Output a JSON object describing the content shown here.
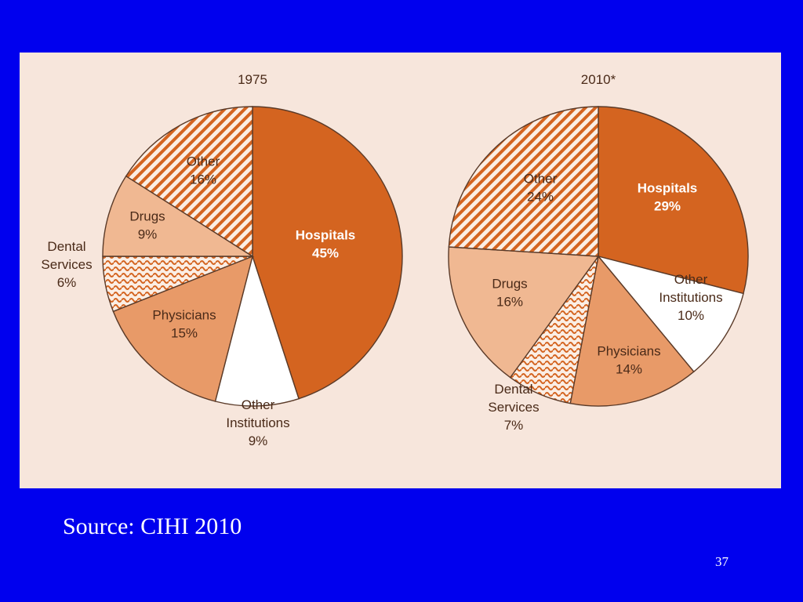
{
  "colors": {
    "background": "#0000ee",
    "panel": "#f7e6dc",
    "hospitals": "#d46420",
    "physicians": "#e89a68",
    "drugs": "#f0b892",
    "other_institutions": "#ffffff",
    "pattern_stroke": "#d46420",
    "pattern_bg": "#fbeee4",
    "text": "#4a2a18",
    "text_on_dark": "#ffffff"
  },
  "chart_data": [
    {
      "type": "pie",
      "title": "1975",
      "slices": [
        {
          "key": "hospitals",
          "label": [
            "Hospitals",
            "45%"
          ],
          "value": 45,
          "fill": "hospitals"
        },
        {
          "key": "other-institutions",
          "label": [
            "Other",
            "Institutions",
            "9%"
          ],
          "value": 9,
          "fill": "other_institutions"
        },
        {
          "key": "physicians",
          "label": [
            "Physicians",
            "15%"
          ],
          "value": 15,
          "fill": "physicians"
        },
        {
          "key": "dental-services",
          "label": [
            "Dental",
            "Services",
            "6%"
          ],
          "value": 6,
          "fill": "wave"
        },
        {
          "key": "drugs",
          "label": [
            "Drugs",
            "9%"
          ],
          "value": 9,
          "fill": "drugs"
        },
        {
          "key": "other",
          "label": [
            "Other",
            "16%"
          ],
          "value": 16,
          "fill": "hatch"
        }
      ]
    },
    {
      "type": "pie",
      "title": "2010*",
      "slices": [
        {
          "key": "hospitals",
          "label": [
            "Hospitals",
            "29%"
          ],
          "value": 29,
          "fill": "hospitals"
        },
        {
          "key": "other-institutions",
          "label": [
            "Other",
            "Institutions",
            "10%"
          ],
          "value": 10,
          "fill": "other_institutions"
        },
        {
          "key": "physicians",
          "label": [
            "Physicians",
            "14%"
          ],
          "value": 14,
          "fill": "physicians"
        },
        {
          "key": "dental-services",
          "label": [
            "Dental",
            "Services",
            "7%"
          ],
          "value": 7,
          "fill": "wave"
        },
        {
          "key": "drugs",
          "label": [
            "Drugs",
            "16%"
          ],
          "value": 16,
          "fill": "drugs"
        },
        {
          "key": "other",
          "label": [
            "Other",
            "24%"
          ],
          "value": 24,
          "fill": "hatch"
        }
      ]
    }
  ],
  "footer": {
    "source": "Source: CIHI 2010",
    "page_number": "37"
  }
}
